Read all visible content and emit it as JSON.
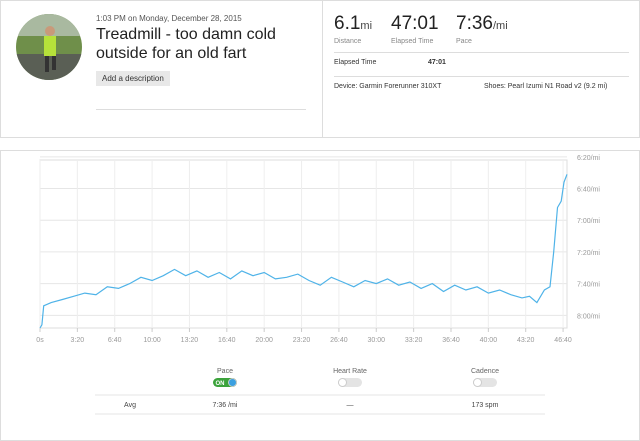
{
  "header": {
    "timestamp": "1:03 PM on Monday, December 28, 2015",
    "title": "Treadmill - too damn cold outside for an old fart",
    "button": "Add a description",
    "stats": [
      {
        "value": "6.1",
        "unit": "mi",
        "label": "Distance"
      },
      {
        "value": "47:01",
        "label": "Elapsed Time"
      },
      {
        "value": "7:36",
        "unit": "/mi",
        "label": "Pace"
      }
    ],
    "detail_label": "Elapsed Time",
    "detail_value": "47:01",
    "device": "Device: Garmin Forerunner 310XT",
    "shoes": "Shoes: Pearl Izumi N1 Road v2 (9.2 mi)"
  },
  "chart_data": {
    "type": "line",
    "x": [
      0,
      10,
      20,
      60,
      120,
      180,
      240,
      300,
      360,
      420,
      480,
      540,
      600,
      660,
      720,
      780,
      840,
      900,
      960,
      1020,
      1080,
      1140,
      1200,
      1260,
      1320,
      1380,
      1440,
      1500,
      1560,
      1620,
      1680,
      1740,
      1800,
      1860,
      1920,
      1980,
      2040,
      2100,
      2160,
      2220,
      2280,
      2340,
      2400,
      2460,
      2520,
      2580,
      2620,
      2660,
      2700,
      2730,
      2750,
      2770,
      2790,
      2805,
      2821
    ],
    "values": [
      488,
      486,
      474,
      472,
      470,
      468,
      466,
      467,
      462,
      463,
      460,
      456,
      458,
      455,
      451,
      455,
      452,
      456,
      453,
      457,
      452,
      455,
      453,
      457,
      456,
      454,
      458,
      461,
      456,
      459,
      462,
      458,
      460,
      457,
      461,
      459,
      463,
      460,
      465,
      461,
      464,
      462,
      466,
      464,
      467,
      469,
      468,
      472,
      464,
      462,
      440,
      412,
      408,
      396,
      391
    ],
    "color": "#4fb3e8",
    "xlim": [
      0,
      2821
    ],
    "ylim": [
      488,
      382
    ],
    "xticks": [
      {
        "value": 0,
        "label": "0s"
      },
      {
        "value": 200,
        "label": "3:20"
      },
      {
        "value": 400,
        "label": "6:40"
      },
      {
        "value": 600,
        "label": "10:00"
      },
      {
        "value": 800,
        "label": "13:20"
      },
      {
        "value": 1000,
        "label": "16:40"
      },
      {
        "value": 1200,
        "label": "20:00"
      },
      {
        "value": 1400,
        "label": "23:20"
      },
      {
        "value": 1600,
        "label": "26:40"
      },
      {
        "value": 1800,
        "label": "30:00"
      },
      {
        "value": 2000,
        "label": "33:20"
      },
      {
        "value": 2200,
        "label": "36:40"
      },
      {
        "value": 2400,
        "label": "40:00"
      },
      {
        "value": 2600,
        "label": "43:20"
      },
      {
        "value": 2800,
        "label": "46:40"
      }
    ],
    "yticks": [
      {
        "value": 380,
        "label": "6:20/mi"
      },
      {
        "value": 400,
        "label": "6:40/mi"
      },
      {
        "value": 420,
        "label": "7:00/mi"
      },
      {
        "value": 440,
        "label": "7:20/mi"
      },
      {
        "value": 460,
        "label": "7:40/mi"
      },
      {
        "value": 480,
        "label": "8:00/mi"
      }
    ],
    "grid": true
  },
  "summary": {
    "toggles": [
      {
        "label": "Pace",
        "on": true,
        "on_text": "ON"
      },
      {
        "label": "Heart Rate",
        "on": false
      },
      {
        "label": "Cadence",
        "on": false
      }
    ],
    "avg_label": "Avg",
    "avg": [
      "7:36 /mi",
      "—",
      "173 spm"
    ]
  }
}
